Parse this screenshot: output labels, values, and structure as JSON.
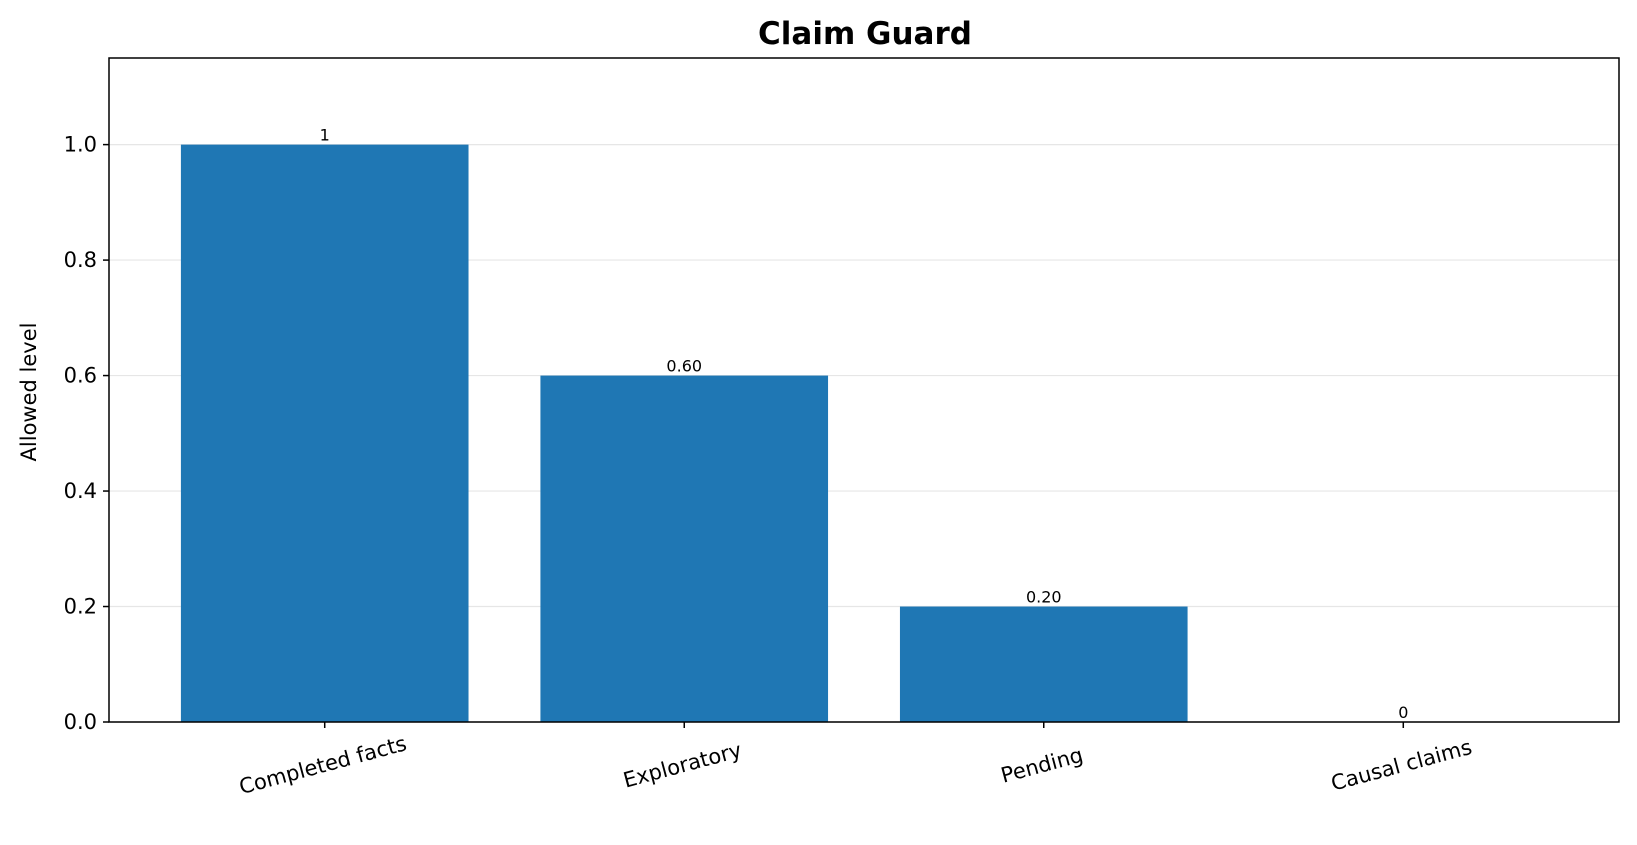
{
  "chart_data": {
    "type": "bar",
    "title": "Claim Guard",
    "xlabel": "",
    "ylabel": "Allowed level",
    "categories": [
      "Completed facts",
      "Exploratory",
      "Pending",
      "Causal claims"
    ],
    "values": [
      1.0,
      0.6,
      0.2,
      0.0
    ],
    "data_labels": [
      "1",
      "0.60",
      "0.20",
      "0"
    ],
    "ylim": [
      0,
      1.15
    ],
    "yticks": [
      0.0,
      0.2,
      0.4,
      0.6,
      0.8,
      1.0
    ],
    "ytick_labels": [
      "0.0",
      "0.2",
      "0.4",
      "0.6",
      "0.8",
      "1.0"
    ],
    "grid": "horizontal",
    "bar_color": "#1f77b4",
    "category_label_rotation": "slanted"
  }
}
